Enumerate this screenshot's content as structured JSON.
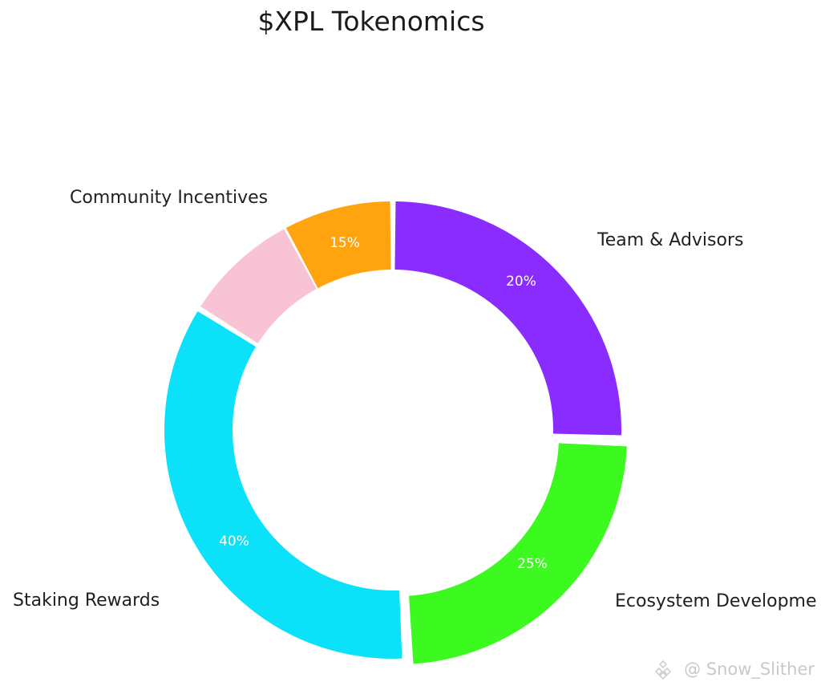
{
  "chart_data": {
    "type": "pie",
    "donut": true,
    "title": "$XPL Tokenomics",
    "categories": [
      "Team & Advisors",
      "Ecosystem Developme",
      "Staking Rewards",
      "Community Incentives"
    ],
    "values": [
      20,
      25,
      40,
      15
    ],
    "labels": [
      "20%",
      "25%",
      "40%",
      "15%"
    ],
    "colors": [
      "#8a2cff",
      "#3cf91f",
      "#0be1f8",
      "#ffa40e"
    ],
    "community_incentives_secondary_color": "#f9c3d6",
    "legend": "none",
    "label_placement": "outside"
  },
  "watermark": {
    "text": "@ Snow_Slither",
    "icon": "binance-logo-icon"
  }
}
